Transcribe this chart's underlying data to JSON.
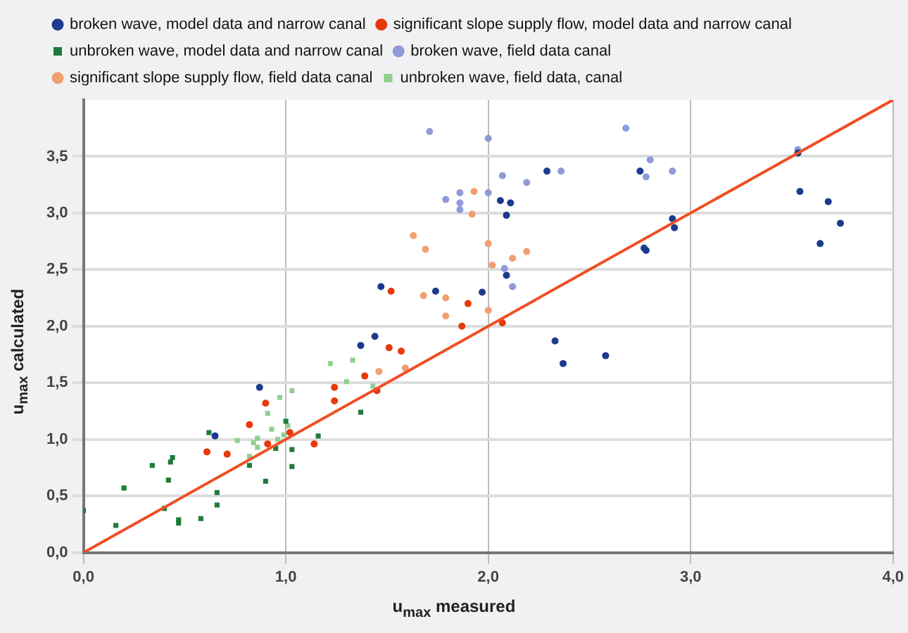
{
  "chart_data": {
    "type": "scatter",
    "xlabel": "u$_{max}$ measured",
    "ylabel": "u$_{max}$ calculated",
    "xlim": [
      0,
      4
    ],
    "ylim": [
      0,
      4
    ],
    "xticks": [
      {
        "value": 0,
        "label": "0,0"
      },
      {
        "value": 1,
        "label": "1,0"
      },
      {
        "value": 2,
        "label": "2,0"
      },
      {
        "value": 3,
        "label": "3,0"
      },
      {
        "value": 4,
        "label": "4,0"
      }
    ],
    "yticks": [
      {
        "value": 0,
        "label": "0,0"
      },
      {
        "value": 0.5,
        "label": "0,5"
      },
      {
        "value": 1,
        "label": "1,0"
      },
      {
        "value": 1.5,
        "label": "1,5"
      },
      {
        "value": 2,
        "label": "2,0"
      },
      {
        "value": 2.5,
        "label": "2,5"
      },
      {
        "value": 3,
        "label": "3,0"
      },
      {
        "value": 3.5,
        "label": "3,5"
      }
    ],
    "grid": true,
    "legend": "top",
    "series": [
      {
        "name": "broken wave, model data and narrow canal",
        "color": "#1c3a8e",
        "marker": "circle",
        "x": [
          0.65,
          0.87,
          1.37,
          1.44,
          1.47,
          1.74,
          1.97,
          2.09,
          2.06,
          2.11,
          2.09,
          2.29,
          2.33,
          2.37,
          2.58,
          2.75,
          2.77,
          2.78,
          2.91,
          2.92,
          3.53,
          3.54,
          3.68,
          3.74,
          3.64
        ],
        "values": [
          1.03,
          1.46,
          1.83,
          1.91,
          2.35,
          2.31,
          2.3,
          2.45,
          3.11,
          3.09,
          2.98,
          3.37,
          1.87,
          1.67,
          1.74,
          3.37,
          2.69,
          2.67,
          2.95,
          2.87,
          3.53,
          3.19,
          3.1,
          2.91,
          2.73
        ]
      },
      {
        "name": "significant slope supply flow, model data and narrow canal",
        "color": "#e8380d",
        "marker": "circle",
        "x": [
          0.61,
          0.71,
          0.82,
          0.9,
          0.91,
          1.02,
          1.14,
          1.24,
          1.24,
          1.39,
          1.45,
          1.51,
          1.57,
          1.52,
          1.87,
          1.9,
          2.07
        ],
        "values": [
          0.89,
          0.87,
          1.13,
          1.32,
          0.96,
          1.06,
          0.96,
          1.34,
          1.46,
          1.56,
          1.43,
          1.81,
          1.78,
          2.31,
          2.0,
          2.2,
          2.03
        ]
      },
      {
        "name": "unbroken wave, model data and narrow canal",
        "color": "#1e7a3a",
        "marker": "square",
        "x": [
          0,
          0.16,
          0.2,
          0.34,
          0.4,
          0.42,
          0.43,
          0.44,
          0.47,
          0.47,
          0.58,
          0.66,
          0.66,
          0.62,
          0.82,
          0.9,
          0.95,
          1.0,
          1.03,
          1.03,
          1.16,
          1.37
        ],
        "values": [
          0.37,
          0.24,
          0.57,
          0.77,
          0.39,
          0.64,
          0.8,
          0.84,
          0.29,
          0.26,
          0.3,
          0.53,
          0.42,
          1.06,
          0.77,
          0.63,
          0.92,
          1.16,
          0.91,
          0.76,
          1.03,
          1.24
        ]
      },
      {
        "name": "broken wave, field data canal",
        "color": "#8f9ad6",
        "marker": "circle",
        "x": [
          1.71,
          2.0,
          2.07,
          2.19,
          2.36,
          1.79,
          1.86,
          1.86,
          1.86,
          2.0,
          2.08,
          2.12,
          2.68,
          2.8,
          2.78,
          2.91,
          3.53
        ],
        "values": [
          3.72,
          3.66,
          3.33,
          3.27,
          3.37,
          3.12,
          3.18,
          3.09,
          3.03,
          3.18,
          2.51,
          2.35,
          3.75,
          3.47,
          3.32,
          3.37,
          3.56
        ]
      },
      {
        "name": "significant slope supply flow, field data canal",
        "color": "#f0a070",
        "marker": "circle",
        "x": [
          1.46,
          1.59,
          1.63,
          1.69,
          1.93,
          1.92,
          2.0,
          2.02,
          2.12,
          2.19,
          1.68,
          1.79,
          1.79,
          2.0
        ],
        "values": [
          1.6,
          1.63,
          2.8,
          2.68,
          3.19,
          2.99,
          2.73,
          2.54,
          2.6,
          2.66,
          2.27,
          2.25,
          2.09,
          2.14
        ]
      },
      {
        "name": "unbroken wave, field data, canal",
        "color": "#8fd08f",
        "marker": "square",
        "x": [
          0.76,
          0.82,
          0.84,
          0.86,
          0.86,
          0.91,
          0.93,
          0.96,
          0.97,
          0.99,
          1.01,
          1.03,
          1.22,
          1.3,
          1.33,
          1.43
        ],
        "values": [
          0.99,
          0.85,
          0.97,
          1.01,
          0.93,
          1.23,
          1.09,
          1.0,
          1.37,
          1.04,
          1.12,
          1.43,
          1.67,
          1.51,
          1.7,
          1.47
        ]
      },
      {
        "type": "line",
        "color": "#f04e23",
        "marker": "none",
        "x": [
          0,
          4
        ],
        "values": [
          0,
          4
        ]
      }
    ]
  }
}
